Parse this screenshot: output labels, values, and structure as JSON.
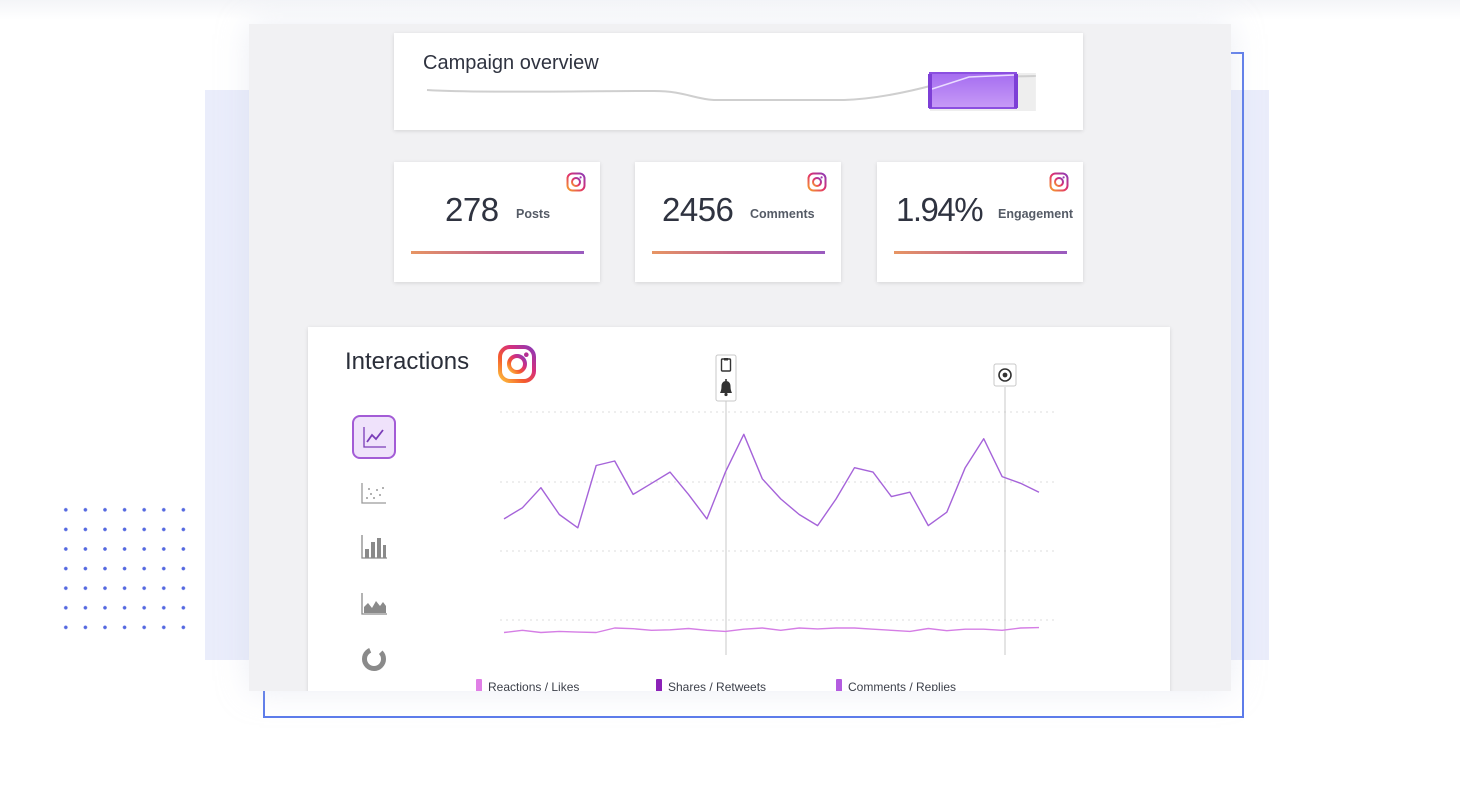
{
  "overview": {
    "title": "Campaign overview"
  },
  "stats": [
    {
      "value": "278",
      "label": "Posts",
      "icon": "instagram-icon"
    },
    {
      "value": "2456",
      "label": "Comments",
      "icon": "instagram-icon"
    },
    {
      "value": "1.94%",
      "label": "Engagement",
      "icon": "instagram-icon"
    }
  ],
  "interactions": {
    "title": "Interactions",
    "icon": "instagram-icon",
    "tools": [
      "line-chart-icon",
      "scatter-chart-icon",
      "bar-chart-icon",
      "area-chart-icon",
      "donut-chart-icon"
    ],
    "markers": [
      "clipboard-icon",
      "bell-icon",
      "target-icon"
    ],
    "legend": [
      {
        "label": "Reactions / Likes",
        "color": "#e07fe6"
      },
      {
        "label": "Shares / Retweets",
        "color": "#8c22b8"
      },
      {
        "label": "Comments / Replies",
        "color": "#b45ce0"
      }
    ]
  },
  "colors": {
    "accent": "#a35cd6",
    "frame": "#5c7bea",
    "background_panel": "#eaedfb"
  },
  "chart_data": {
    "type": "line",
    "series": [
      {
        "values": [
          62,
          67,
          76,
          64,
          58,
          86,
          88,
          73,
          78,
          83,
          73,
          62,
          83,
          100,
          80,
          71,
          64,
          59,
          71,
          85,
          83,
          72,
          74,
          59,
          65,
          85,
          98,
          81,
          78,
          74
        ]
      },
      {
        "values": [
          11,
          12,
          11,
          11.5,
          11.2,
          11,
          13,
          12.7,
          12,
          12.2,
          12.8,
          12,
          11.5,
          12.5,
          13,
          12,
          13,
          12.6,
          13,
          13,
          12.5,
          12,
          11.5,
          12.8,
          11.8,
          12.5,
          12.5,
          12,
          13,
          13.2
        ]
      }
    ],
    "ylim": [
      0,
      110
    ],
    "markers_at_index": [
      12,
      27
    ],
    "grid": true
  }
}
